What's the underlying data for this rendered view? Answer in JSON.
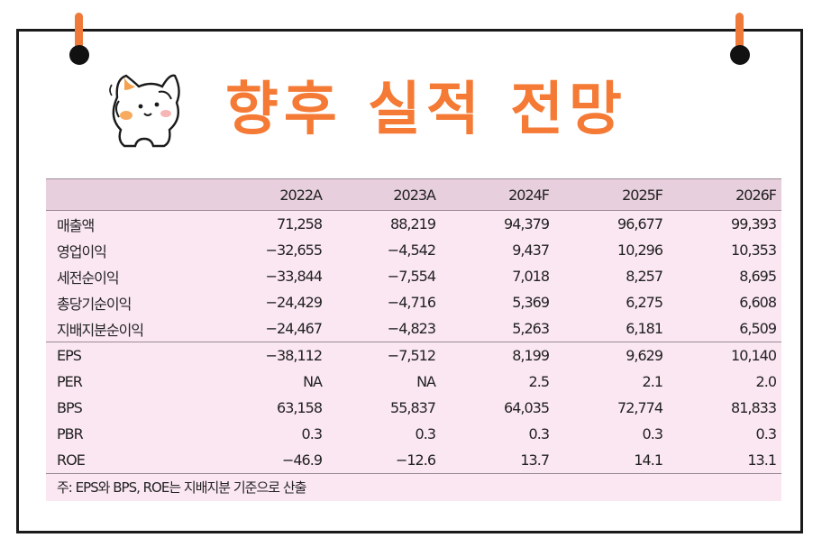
{
  "title": "향후 실적 전망",
  "table": {
    "columns": [
      "",
      "2022A",
      "2023A",
      "2024F",
      "2025F",
      "2026F"
    ],
    "rows": [
      {
        "label": "매출액",
        "values": [
          "71,258",
          "88,219",
          "94,379",
          "96,677",
          "99,393"
        ]
      },
      {
        "label": "영업이익",
        "values": [
          "−32,655",
          "−4,542",
          "9,437",
          "10,296",
          "10,353"
        ]
      },
      {
        "label": "세전순이익",
        "values": [
          "−33,844",
          "−7,554",
          "7,018",
          "8,257",
          "8,695"
        ]
      },
      {
        "label": "총당기순이익",
        "values": [
          "−24,429",
          "−4,716",
          "5,369",
          "6,275",
          "6,608"
        ]
      },
      {
        "label": "지배지분순이익",
        "values": [
          "−24,467",
          "−4,823",
          "5,263",
          "6,181",
          "6,509"
        ]
      },
      {
        "label": "EPS",
        "values": [
          "−38,112",
          "−7,512",
          "8,199",
          "9,629",
          "10,140"
        ]
      },
      {
        "label": "PER",
        "values": [
          "NA",
          "NA",
          "2.5",
          "2.1",
          "2.0"
        ]
      },
      {
        "label": "BPS",
        "values": [
          "63,158",
          "55,837",
          "64,035",
          "72,774",
          "81,833"
        ]
      },
      {
        "label": "PBR",
        "values": [
          "0.3",
          "0.3",
          "0.3",
          "0.3",
          "0.3"
        ]
      },
      {
        "label": "ROE",
        "values": [
          "−46.9",
          "−12.6",
          "13.7",
          "14.1",
          "13.1"
        ]
      }
    ],
    "note": "주: EPS와 BPS, ROE는 지배지분 기준으로 산출"
  },
  "colors": {
    "title": "#f47a35",
    "header_bg": "#e7cfdd",
    "body_bg": "#fbe7f2",
    "pin": "#f07a3a"
  }
}
